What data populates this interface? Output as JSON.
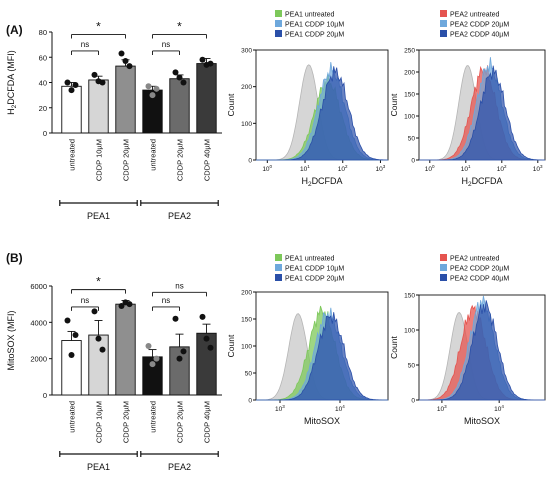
{
  "panels": {
    "A": {
      "label": "(A)"
    },
    "B": {
      "label": "(B)"
    }
  },
  "colors": {
    "untreated_pea1": "#ffffff",
    "cddp_low": "#d6d6d6",
    "cddp_high": "#8f8f8f",
    "untreated_pea2": "#111111",
    "pea2_low": "#6b6b6b",
    "pea2_high": "#3a3a3a",
    "sig": "#e02020",
    "hist_control": "#cfcfcf",
    "hist_green": "#7dc85a",
    "hist_lightblue": "#6ea8dc",
    "hist_darkblue": "#2a4fa8",
    "hist_red": "#e5544f"
  },
  "chart_data": [
    {
      "type": "bar",
      "panel": "A",
      "ylabel_prefix": "H",
      "ylabel_sub": "2",
      "ylabel_suffix": "DCFDA (MFI)",
      "ylim": [
        0,
        80
      ],
      "yticks": [
        "0",
        "20",
        "40",
        "60",
        "80"
      ],
      "categories": [
        "untreated",
        "CDDP  10µM",
        "CDDP  20µM",
        "untreated",
        "CDDP  20µM",
        "CDDP  40µM"
      ],
      "values": [
        37,
        42,
        53,
        34,
        43,
        55
      ],
      "errors": [
        3,
        3,
        5,
        3,
        3,
        4
      ],
      "points": [
        [
          40,
          34,
          38
        ],
        [
          46,
          41,
          40
        ],
        [
          63,
          57,
          53
        ],
        [
          37,
          30,
          35
        ],
        [
          48,
          44,
          40
        ],
        [
          58,
          54,
          55
        ]
      ],
      "groups": [
        {
          "label": "PEA1"
        },
        {
          "label": "PEA2"
        }
      ],
      "annotations": [
        "*",
        "ns",
        "*",
        "ns"
      ]
    },
    {
      "type": "bar",
      "panel": "B",
      "ylabel": "MitoSOX (MFI)",
      "ylim": [
        0,
        6000
      ],
      "yticks": [
        "0",
        "2000",
        "4000",
        "6000"
      ],
      "categories": [
        "untreated",
        "CDDP  10µM",
        "CDDP  20µM",
        "untreated",
        "CDDP  20µM",
        "CDDP  40µM"
      ],
      "values": [
        3000,
        3300,
        5000,
        2100,
        2650,
        3400
      ],
      "errors": [
        500,
        800,
        200,
        400,
        700,
        500
      ],
      "points": [
        [
          4100,
          2200,
          3300
        ],
        [
          4600,
          3100,
          2500
        ],
        [
          4900,
          5100,
          5000
        ],
        [
          2700,
          1700,
          2000
        ],
        [
          4200,
          2000,
          2400
        ],
        [
          4300,
          3100,
          2600
        ]
      ],
      "groups": [
        {
          "label": "PEA1"
        },
        {
          "label": "PEA2"
        }
      ],
      "annotations": [
        "*",
        "ns",
        "ns",
        "ns"
      ]
    },
    {
      "type": "area",
      "panel": "A",
      "ylabel": "Count",
      "ylim": [
        0,
        300
      ],
      "yticks": [
        "0",
        "100",
        "200",
        "300"
      ],
      "xlabel_prefix": "H",
      "xlabel_sub": "2",
      "xlabel_suffix": "DCFDA",
      "xticks": [
        {
          "base": "10",
          "exp": "0"
        },
        {
          "base": "10",
          "exp": "1"
        },
        {
          "base": "10",
          "exp": "2"
        },
        {
          "base": "10",
          "exp": "3"
        }
      ],
      "legend": [
        "PEA1 untreated",
        "PEA1 CDDP 10µM",
        "PEA1 CDDP 20µM"
      ],
      "series_peaks": [
        {
          "name": "control",
          "peak_x": 1.1,
          "peak": 260
        },
        {
          "name": "PEA1 untreated",
          "peak_x": 1.6,
          "peak": 215
        },
        {
          "name": "PEA1 CDDP 10µM",
          "peak_x": 1.7,
          "peak": 245
        },
        {
          "name": "PEA1 CDDP 20µM",
          "peak_x": 1.8,
          "peak": 240
        }
      ]
    },
    {
      "type": "area",
      "panel": "A",
      "ylabel": "Count",
      "ylim": [
        0,
        250
      ],
      "yticks": [
        "0",
        "50",
        "100",
        "150",
        "200",
        "250"
      ],
      "xlabel_prefix": "H",
      "xlabel_sub": "2",
      "xlabel_suffix": "DCFDA",
      "xticks": [
        {
          "base": "10",
          "exp": "0"
        },
        {
          "base": "10",
          "exp": "1"
        },
        {
          "base": "10",
          "exp": "2"
        },
        {
          "base": "10",
          "exp": "3"
        }
      ],
      "legend": [
        "PEA2 untreated",
        "PEA2 CDDP 20µM",
        "PEA2 CDDP 40µM"
      ],
      "series_peaks": [
        {
          "name": "control",
          "peak_x": 1.05,
          "peak": 215
        },
        {
          "name": "PEA2 untreated",
          "peak_x": 1.5,
          "peak": 205
        },
        {
          "name": "PEA2 CDDP 20µM",
          "peak_x": 1.65,
          "peak": 215
        },
        {
          "name": "PEA2 CDDP 40µM",
          "peak_x": 1.75,
          "peak": 200
        }
      ]
    },
    {
      "type": "area",
      "panel": "B",
      "ylabel": "Count",
      "ylim": [
        0,
        200
      ],
      "yticks": [
        "0",
        "50",
        "100",
        "150",
        "200"
      ],
      "xlabel": "MitoSOX",
      "xticks": [
        {
          "base": "10",
          "exp": "3"
        },
        {
          "base": "10",
          "exp": "4"
        }
      ],
      "legend": [
        "PEA1 untreated",
        "PEA1 CDDP 10µM",
        "PEA1 CDDP 20µM"
      ],
      "series_peaks": [
        {
          "name": "control",
          "peak_x": 3.3,
          "peak": 160
        },
        {
          "name": "PEA1 untreated",
          "peak_x": 3.7,
          "peak": 165
        },
        {
          "name": "PEA1 CDDP 10µM",
          "peak_x": 3.8,
          "peak": 160
        },
        {
          "name": "PEA1 CDDP 20µM",
          "peak_x": 3.85,
          "peak": 155
        }
      ]
    },
    {
      "type": "area",
      "panel": "B",
      "ylabel": "Count",
      "ylim": [
        0,
        150
      ],
      "yticks": [
        "0",
        "50",
        "100",
        "150"
      ],
      "xlabel": "MitoSOX",
      "xticks": [
        {
          "base": "10",
          "exp": "3"
        },
        {
          "base": "10",
          "exp": "4"
        }
      ],
      "legend": [
        "PEA2 untreated",
        "PEA2 CDDP 20µM",
        "PEA2 CDDP 40µM"
      ],
      "series_peaks": [
        {
          "name": "control",
          "peak_x": 3.3,
          "peak": 125
        },
        {
          "name": "PEA2 untreated",
          "peak_x": 3.55,
          "peak": 130
        },
        {
          "name": "PEA2 CDDP 20µM",
          "peak_x": 3.7,
          "peak": 140
        },
        {
          "name": "PEA2 CDDP 40µM",
          "peak_x": 3.75,
          "peak": 135
        }
      ]
    }
  ]
}
